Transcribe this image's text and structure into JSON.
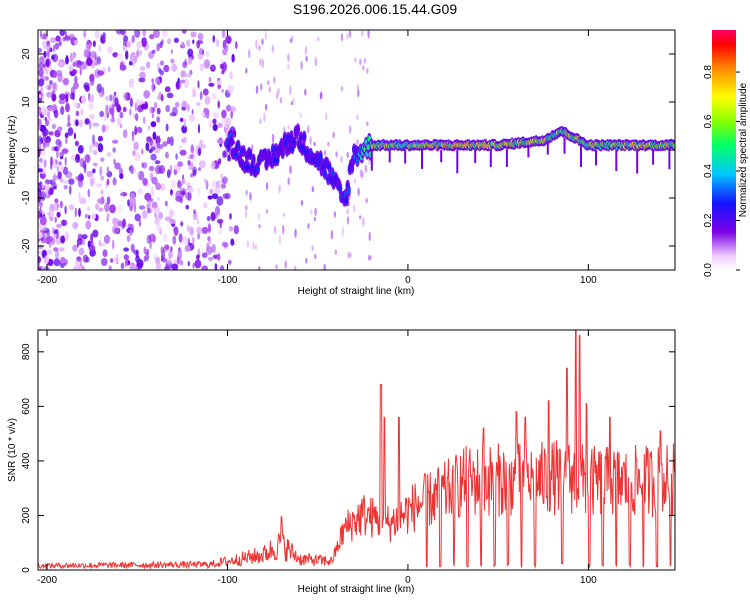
{
  "title": "S196.2026.006.15.44.G09",
  "chart_data": [
    {
      "type": "heatmap",
      "title": "",
      "xlabel": "Height of straight line (km)",
      "ylabel": "Frequency (Hz)",
      "xlim": [
        -205,
        148
      ],
      "ylim": [
        -25,
        25
      ],
      "xticks": [
        -200,
        -100,
        0,
        100
      ],
      "yticks": [
        -20,
        -10,
        0,
        10,
        20
      ],
      "colorbar": {
        "label": "Normalized spectral amplitude",
        "range": [
          0.0,
          0.97
        ],
        "ticks": [
          0.0,
          0.2,
          0.4,
          0.6,
          0.8
        ]
      },
      "ridge": [
        {
          "x": -100,
          "y": 3,
          "amp": 0.35
        },
        {
          "x": -95,
          "y": 0,
          "amp": 0.3
        },
        {
          "x": -90,
          "y": -2,
          "amp": 0.3
        },
        {
          "x": -80,
          "y": -3,
          "amp": 0.3
        },
        {
          "x": -62,
          "y": 3,
          "amp": 0.3
        },
        {
          "x": -55,
          "y": 0,
          "amp": 0.3
        },
        {
          "x": -45,
          "y": -4,
          "amp": 0.3
        },
        {
          "x": -35,
          "y": -11,
          "amp": 0.35
        },
        {
          "x": -30,
          "y": -1,
          "amp": 0.3
        },
        {
          "x": -20,
          "y": 1,
          "amp": 0.7
        },
        {
          "x": 0,
          "y": 1,
          "amp": 0.75
        },
        {
          "x": 20,
          "y": 1,
          "amp": 0.85
        },
        {
          "x": 50,
          "y": 1,
          "amp": 0.8
        },
        {
          "x": 75,
          "y": 2,
          "amp": 0.8
        },
        {
          "x": 85,
          "y": 4,
          "amp": 0.7
        },
        {
          "x": 100,
          "y": 1,
          "amp": 0.75
        },
        {
          "x": 148,
          "y": 1,
          "amp": 0.8
        }
      ]
    },
    {
      "type": "line",
      "title": "",
      "xlabel": "Height of straight line (km)",
      "ylabel": "SNR (10 * v/v)",
      "xlim": [
        -205,
        148
      ],
      "ylim": [
        0,
        880
      ],
      "xticks": [
        -200,
        -100,
        0,
        100
      ],
      "yticks": [
        0,
        200,
        400,
        600,
        800
      ],
      "series": [
        {
          "name": "SNR",
          "color": "#ee3333",
          "envelope": [
            {
              "x": -205,
              "value": 20
            },
            {
              "x": -110,
              "value": 25
            },
            {
              "x": -80,
              "value": 70
            },
            {
              "x": -70,
              "value": 120
            },
            {
              "x": -60,
              "value": 50
            },
            {
              "x": -42,
              "value": 40
            },
            {
              "x": -35,
              "value": 180
            },
            {
              "x": -25,
              "value": 240
            },
            {
              "x": -10,
              "value": 200
            },
            {
              "x": 5,
              "value": 280
            },
            {
              "x": 20,
              "value": 330
            },
            {
              "x": 30,
              "value": 380
            },
            {
              "x": 50,
              "value": 390
            },
            {
              "x": 70,
              "value": 390
            },
            {
              "x": 80,
              "value": 400
            },
            {
              "x": 92,
              "value": 400
            },
            {
              "x": 100,
              "value": 380
            },
            {
              "x": 120,
              "value": 380
            },
            {
              "x": 148,
              "value": 390
            }
          ],
          "peaks": [
            {
              "x": -70,
              "value": 195
            },
            {
              "x": -15,
              "value": 680
            },
            {
              "x": -13,
              "value": 560
            },
            {
              "x": -5,
              "value": 560
            },
            {
              "x": 42,
              "value": 520
            },
            {
              "x": 60,
              "value": 580
            },
            {
              "x": 65,
              "value": 560
            },
            {
              "x": 78,
              "value": 620
            },
            {
              "x": 88,
              "value": 740
            },
            {
              "x": 93,
              "value": 880
            },
            {
              "x": 95,
              "value": 860
            },
            {
              "x": 99,
              "value": 610
            },
            {
              "x": 112,
              "value": 560
            },
            {
              "x": 140,
              "value": 510
            }
          ]
        }
      ]
    }
  ]
}
